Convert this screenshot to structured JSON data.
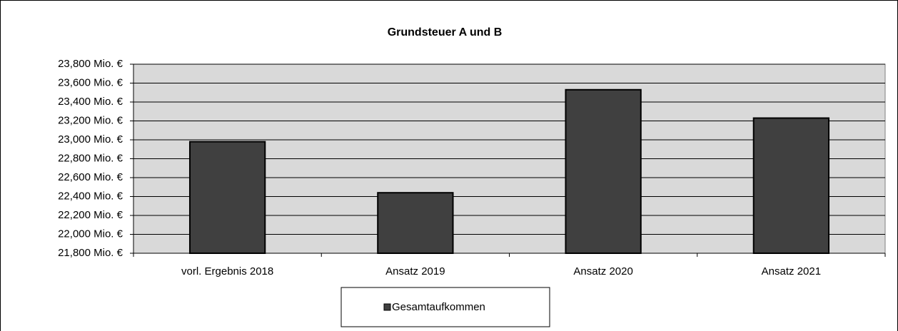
{
  "chart_data": {
    "type": "bar",
    "title": "Grundsteuer A und B",
    "categories": [
      "vorl. Ergebnis 2018",
      "Ansatz 2019",
      "Ansatz 2020",
      "Ansatz 2021"
    ],
    "series": [
      {
        "name": "Gesamtaufkommen",
        "color": "#404040",
        "values": [
          22980,
          22440,
          23530,
          23230
        ]
      }
    ],
    "ylim": [
      21800,
      23800
    ],
    "yticks": [
      {
        "value": 21800,
        "label": "21,800 Mio. €"
      },
      {
        "value": 22000,
        "label": "22,000 Mio. €"
      },
      {
        "value": 22200,
        "label": "22,200 Mio. €"
      },
      {
        "value": 22400,
        "label": "22,400 Mio. €"
      },
      {
        "value": 22600,
        "label": "22,600 Mio. €"
      },
      {
        "value": 22800,
        "label": "22,800 Mio. €"
      },
      {
        "value": 23000,
        "label": "23,000 Mio. €"
      },
      {
        "value": 23200,
        "label": "23,200 Mio. €"
      },
      {
        "value": 23400,
        "label": "23,400 Mio. €"
      },
      {
        "value": 23600,
        "label": "23,600 Mio. €"
      },
      {
        "value": 23800,
        "label": "23,800 Mio. €"
      }
    ],
    "grid": true,
    "plot_background": "#d9d9d9",
    "legend": "bottom"
  }
}
